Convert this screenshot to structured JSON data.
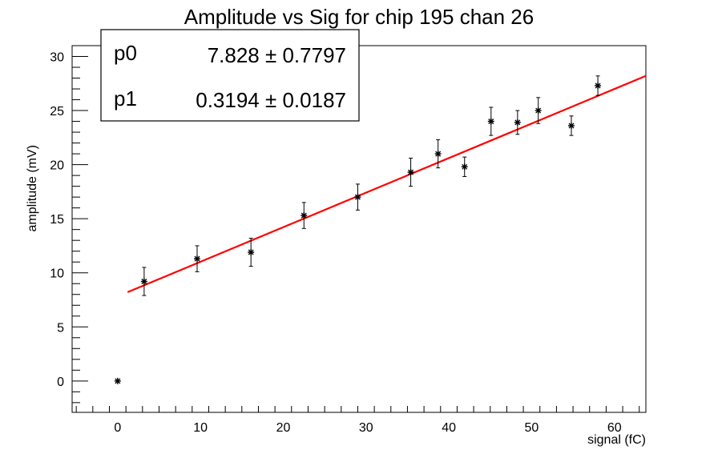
{
  "chart_data": {
    "type": "scatter",
    "title": "Amplitude vs Sig for chip 195 chan 26",
    "xlabel": "signal (fC)",
    "ylabel": "amplitude (mV)",
    "xlim": [
      -5.5,
      63.8
    ],
    "ylim": [
      -2.9,
      31.0
    ],
    "x_ticks": [
      0,
      10,
      20,
      30,
      40,
      50,
      60
    ],
    "y_ticks": [
      0,
      5,
      10,
      15,
      20,
      25,
      30
    ],
    "grid": false,
    "marker": "asterisk",
    "points": [
      {
        "x": 0.0,
        "y": 0.0,
        "err": 0.0
      },
      {
        "x": 3.2,
        "y": 9.2,
        "err": 1.3
      },
      {
        "x": 9.6,
        "y": 11.3,
        "err": 1.2
      },
      {
        "x": 16.1,
        "y": 11.9,
        "err": 1.3
      },
      {
        "x": 22.5,
        "y": 15.3,
        "err": 1.2
      },
      {
        "x": 29.0,
        "y": 17.0,
        "err": 1.2
      },
      {
        "x": 35.4,
        "y": 19.3,
        "err": 1.3
      },
      {
        "x": 38.7,
        "y": 21.0,
        "err": 1.3
      },
      {
        "x": 41.9,
        "y": 19.8,
        "err": 0.9
      },
      {
        "x": 45.1,
        "y": 24.0,
        "err": 1.3
      },
      {
        "x": 48.3,
        "y": 23.9,
        "err": 1.1
      },
      {
        "x": 50.8,
        "y": 25.0,
        "err": 1.2
      },
      {
        "x": 54.8,
        "y": 23.6,
        "err": 0.9
      },
      {
        "x": 58.0,
        "y": 27.3,
        "err": 0.9
      }
    ],
    "fit": {
      "type": "linear",
      "p0": 7.828,
      "p1": 0.3194,
      "x_range": [
        1.2,
        63.8
      ],
      "color": "#ff0000"
    },
    "stats_box": {
      "position": "top-left",
      "rows": [
        {
          "label": "p0",
          "value": "7.828 ± 0.7797"
        },
        {
          "label": "p1",
          "value": "0.3194 ± 0.0187"
        }
      ]
    }
  }
}
